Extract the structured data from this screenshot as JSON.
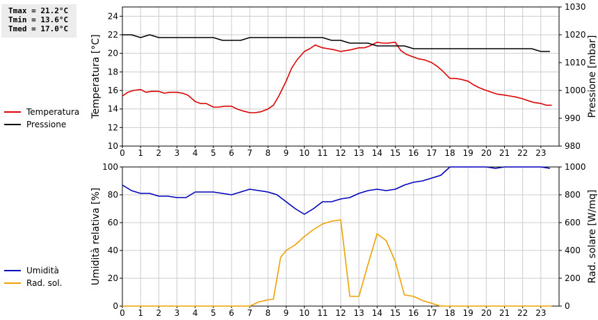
{
  "stats": [
    "Tmax = 21.2°C",
    "Tmin = 13.6°C",
    "Tmed = 17.0°C"
  ],
  "colors": {
    "temperature": "#dd0000",
    "pressure": "#000000",
    "humidity": "#0000bb",
    "radiation": "#f0a000"
  },
  "chart_data": [
    {
      "type": "line",
      "xlim": [
        0,
        24
      ],
      "x_ticks": [
        0,
        1,
        2,
        3,
        4,
        5,
        6,
        7,
        8,
        9,
        10,
        11,
        12,
        13,
        14,
        15,
        16,
        17,
        18,
        19,
        20,
        21,
        22,
        23
      ],
      "ylabel": "Temperatura [°C]",
      "y2label": "Pressione [mbar]",
      "ylim": [
        10,
        25
      ],
      "y2lim": [
        980,
        1030
      ],
      "y_ticks": [
        10,
        12,
        14,
        16,
        18,
        20,
        22,
        24
      ],
      "y2_ticks": [
        980,
        990,
        1000,
        1010,
        1020,
        1030
      ],
      "grid": true,
      "legend_position": "left",
      "series": [
        {
          "name": "Temperatura",
          "axis": "left",
          "x": [
            0,
            0.3,
            0.6,
            1,
            1.3,
            1.6,
            2,
            2.3,
            2.6,
            3,
            3.3,
            3.6,
            4,
            4.3,
            4.6,
            5,
            5.3,
            5.6,
            6,
            6.3,
            6.6,
            7,
            7.3,
            7.6,
            8,
            8.3,
            8.6,
            9,
            9.3,
            9.6,
            10,
            10.3,
            10.6,
            11,
            11.3,
            11.6,
            12,
            12.3,
            12.6,
            13,
            13.3,
            13.6,
            14,
            14.3,
            14.6,
            15,
            15.3,
            15.6,
            16,
            16.3,
            16.6,
            17,
            17.3,
            17.6,
            18,
            18.3,
            18.6,
            19,
            19.3,
            19.6,
            20,
            20.3,
            20.6,
            21,
            21.3,
            21.6,
            22,
            22.3,
            22.6,
            23,
            23.3,
            23.6
          ],
          "values": [
            15.4,
            15.8,
            16.0,
            16.1,
            15.8,
            15.9,
            15.9,
            15.7,
            15.8,
            15.8,
            15.7,
            15.5,
            14.8,
            14.6,
            14.6,
            14.2,
            14.2,
            14.3,
            14.3,
            14.0,
            13.8,
            13.6,
            13.6,
            13.7,
            14.0,
            14.4,
            15.4,
            17.0,
            18.4,
            19.3,
            20.2,
            20.5,
            20.9,
            20.6,
            20.5,
            20.4,
            20.2,
            20.3,
            20.4,
            20.6,
            20.6,
            20.8,
            21.2,
            21.1,
            21.1,
            21.2,
            20.3,
            19.9,
            19.6,
            19.4,
            19.3,
            19.0,
            18.6,
            18.1,
            17.3,
            17.3,
            17.2,
            17.0,
            16.6,
            16.3,
            16.0,
            15.8,
            15.6,
            15.5,
            15.4,
            15.3,
            15.1,
            14.9,
            14.7,
            14.6,
            14.4,
            14.4
          ]
        },
        {
          "name": "Pressione",
          "axis": "right",
          "x": [
            0,
            0.5,
            1,
            1.5,
            2,
            2.5,
            3,
            3.5,
            4,
            4.5,
            5,
            5.5,
            6,
            6.5,
            7,
            7.5,
            8,
            8.5,
            9,
            9.5,
            10,
            10.5,
            11,
            11.5,
            12,
            12.5,
            13,
            13.5,
            14,
            14.5,
            15,
            15.5,
            16,
            16.5,
            17,
            17.5,
            18,
            18.5,
            19,
            19.5,
            20,
            20.5,
            21,
            21.5,
            22,
            22.5,
            23,
            23.5
          ],
          "values": [
            1020,
            1020,
            1019,
            1020,
            1019,
            1019,
            1019,
            1019,
            1019,
            1019,
            1019,
            1018,
            1018,
            1018,
            1019,
            1019,
            1019,
            1019,
            1019,
            1019,
            1019,
            1019,
            1019,
            1018,
            1018,
            1017,
            1017,
            1017,
            1016,
            1016,
            1016,
            1016,
            1015,
            1015,
            1015,
            1015,
            1015,
            1015,
            1015,
            1015,
            1015,
            1015,
            1015,
            1015,
            1015,
            1015,
            1014,
            1014
          ]
        }
      ]
    },
    {
      "type": "line",
      "xlim": [
        0,
        24
      ],
      "x_ticks": [
        0,
        1,
        2,
        3,
        4,
        5,
        6,
        7,
        8,
        9,
        10,
        11,
        12,
        13,
        14,
        15,
        16,
        17,
        18,
        19,
        20,
        21,
        22,
        23
      ],
      "ylabel": "Umidità relativa [%]",
      "y2label": "Rad. solare [W/mq]",
      "ylim": [
        0,
        100
      ],
      "y2lim": [
        0,
        1000
      ],
      "y_ticks": [
        0,
        20,
        40,
        60,
        80,
        100
      ],
      "y2_ticks": [
        0,
        200,
        400,
        600,
        800,
        1000
      ],
      "grid": true,
      "legend_position": "left",
      "series": [
        {
          "name": "Umidità",
          "axis": "left",
          "x": [
            0,
            0.5,
            1,
            1.5,
            2,
            2.5,
            3,
            3.5,
            4,
            4.5,
            5,
            5.5,
            6,
            6.5,
            7,
            7.5,
            8,
            8.5,
            9,
            9.5,
            10,
            10.5,
            11,
            11.5,
            12,
            12.5,
            13,
            13.5,
            14,
            14.5,
            15,
            15.5,
            16,
            16.5,
            17,
            17.5,
            18,
            18.5,
            19,
            19.5,
            20,
            20.5,
            21,
            21.5,
            22,
            22.5,
            23,
            23.5
          ],
          "values": [
            87,
            83,
            81,
            81,
            79,
            79,
            78,
            78,
            82,
            82,
            82,
            81,
            80,
            82,
            84,
            83,
            82,
            80,
            75,
            70,
            66,
            70,
            75,
            75,
            77,
            78,
            81,
            83,
            84,
            83,
            84,
            87,
            89,
            90,
            92,
            94,
            100,
            100,
            100,
            100,
            100,
            99,
            100,
            100,
            100,
            100,
            100,
            99
          ]
        },
        {
          "name": "Rad. sol.",
          "axis": "right",
          "x": [
            0,
            1,
            2,
            3,
            4,
            5,
            6,
            7,
            7.5,
            8,
            8.3,
            8.7,
            9,
            9.5,
            10,
            10.5,
            11,
            11.5,
            12,
            12.5,
            13,
            13.5,
            14,
            14.5,
            15,
            15.5,
            16,
            16.5,
            17,
            17.5,
            18,
            19,
            20,
            21,
            22,
            23,
            23.6
          ],
          "values": [
            0,
            0,
            0,
            0,
            0,
            0,
            0,
            0,
            30,
            45,
            50,
            350,
            400,
            440,
            500,
            550,
            590,
            610,
            620,
            70,
            70,
            300,
            520,
            470,
            320,
            80,
            70,
            40,
            20,
            0,
            0,
            0,
            0,
            0,
            0,
            0,
            0
          ]
        }
      ]
    }
  ]
}
